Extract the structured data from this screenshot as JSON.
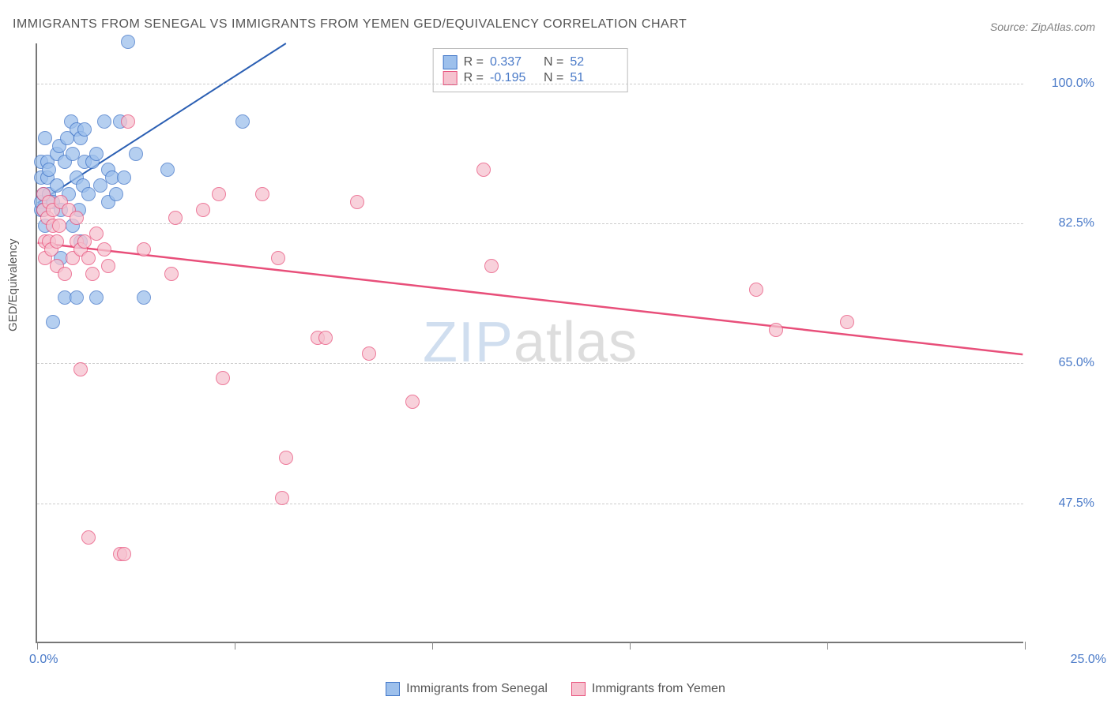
{
  "title": "IMMIGRANTS FROM SENEGAL VS IMMIGRANTS FROM YEMEN GED/EQUIVALENCY CORRELATION CHART",
  "source": "Source: ZipAtlas.com",
  "y_axis_label": "GED/Equivalency",
  "watermark": {
    "z": "ZIP",
    "a": "atlas"
  },
  "chart": {
    "type": "scatter",
    "background_color": "#ffffff",
    "grid_color": "#cccccc",
    "axis_color": "#777777",
    "tick_label_color": "#4a7ac8",
    "xlim": [
      0,
      25
    ],
    "ylim": [
      30,
      105
    ],
    "x_ticks": [
      0,
      5,
      10,
      15,
      20,
      25
    ],
    "x_tick_labels": {
      "0": "0.0%",
      "25": "25.0%"
    },
    "y_gridlines": [
      47.5,
      65.0,
      82.5,
      100.0
    ],
    "y_tick_labels": [
      "47.5%",
      "65.0%",
      "82.5%",
      "100.0%"
    ],
    "marker_radius": 9,
    "marker_opacity_fill": 0.25,
    "series": [
      {
        "name": "Immigrants from Senegal",
        "color_fill": "#9dc0ec",
        "color_stroke": "#3f74c7",
        "legend_r": "0.337",
        "legend_n": "52",
        "trend": {
          "x1": 0,
          "y1": 85,
          "x2": 6.3,
          "y2": 105,
          "dash_x2": 9.6,
          "color": "#2b5fb3",
          "width": 2
        },
        "points": [
          [
            0.1,
            84
          ],
          [
            0.1,
            85
          ],
          [
            0.1,
            88
          ],
          [
            0.1,
            90
          ],
          [
            0.15,
            86
          ],
          [
            0.15,
            84
          ],
          [
            0.2,
            93
          ],
          [
            0.2,
            82
          ],
          [
            0.25,
            88
          ],
          [
            0.25,
            90
          ],
          [
            0.3,
            86
          ],
          [
            0.3,
            89
          ],
          [
            0.4,
            85
          ],
          [
            0.4,
            70
          ],
          [
            0.5,
            91
          ],
          [
            0.5,
            87
          ],
          [
            0.55,
            92
          ],
          [
            0.6,
            78
          ],
          [
            0.6,
            84
          ],
          [
            0.7,
            73
          ],
          [
            0.7,
            90
          ],
          [
            0.75,
            93
          ],
          [
            0.8,
            86
          ],
          [
            0.85,
            95
          ],
          [
            0.9,
            91
          ],
          [
            0.9,
            82
          ],
          [
            1.0,
            88
          ],
          [
            1.0,
            73
          ],
          [
            1.0,
            94
          ],
          [
            1.05,
            84
          ],
          [
            1.1,
            80
          ],
          [
            1.1,
            93
          ],
          [
            1.15,
            87
          ],
          [
            1.2,
            90
          ],
          [
            1.2,
            94
          ],
          [
            1.3,
            86
          ],
          [
            1.4,
            90
          ],
          [
            1.5,
            73
          ],
          [
            1.5,
            91
          ],
          [
            1.6,
            87
          ],
          [
            1.7,
            95
          ],
          [
            1.8,
            89
          ],
          [
            1.8,
            85
          ],
          [
            1.9,
            88
          ],
          [
            2.0,
            86
          ],
          [
            2.1,
            95
          ],
          [
            2.2,
            88
          ],
          [
            2.3,
            105
          ],
          [
            2.5,
            91
          ],
          [
            2.7,
            73
          ],
          [
            3.3,
            89
          ],
          [
            5.2,
            95
          ]
        ]
      },
      {
        "name": "Immigrants from Yemen",
        "color_fill": "#f6c2cf",
        "color_stroke": "#e84f7a",
        "legend_r": "-0.195",
        "legend_n": "51",
        "trend": {
          "x1": 0,
          "y1": 80,
          "x2": 25,
          "y2": 66,
          "color": "#e84f7a",
          "width": 2.5
        },
        "points": [
          [
            0.15,
            84
          ],
          [
            0.15,
            86
          ],
          [
            0.2,
            80
          ],
          [
            0.2,
            78
          ],
          [
            0.25,
            83
          ],
          [
            0.3,
            80
          ],
          [
            0.3,
            85
          ],
          [
            0.35,
            79
          ],
          [
            0.4,
            82
          ],
          [
            0.4,
            84
          ],
          [
            0.5,
            77
          ],
          [
            0.5,
            80
          ],
          [
            0.55,
            82
          ],
          [
            0.6,
            85
          ],
          [
            0.7,
            76
          ],
          [
            0.8,
            84
          ],
          [
            0.9,
            78
          ],
          [
            1.0,
            80
          ],
          [
            1.0,
            83
          ],
          [
            1.1,
            64
          ],
          [
            1.1,
            79
          ],
          [
            1.2,
            80
          ],
          [
            1.3,
            78
          ],
          [
            1.3,
            43
          ],
          [
            1.4,
            76
          ],
          [
            1.5,
            81
          ],
          [
            1.7,
            79
          ],
          [
            1.8,
            77
          ],
          [
            2.1,
            41
          ],
          [
            2.2,
            41
          ],
          [
            2.3,
            95
          ],
          [
            2.7,
            79
          ],
          [
            3.4,
            76
          ],
          [
            3.5,
            83
          ],
          [
            4.2,
            84
          ],
          [
            4.6,
            86
          ],
          [
            4.7,
            63
          ],
          [
            5.7,
            86
          ],
          [
            6.1,
            78
          ],
          [
            6.3,
            53
          ],
          [
            7.1,
            68
          ],
          [
            7.3,
            68
          ],
          [
            8.1,
            85
          ],
          [
            8.4,
            66
          ],
          [
            9.5,
            60
          ],
          [
            11.3,
            89
          ],
          [
            11.5,
            77
          ],
          [
            18.2,
            74
          ],
          [
            18.7,
            69
          ],
          [
            20.5,
            70
          ],
          [
            6.2,
            48
          ]
        ]
      }
    ]
  },
  "legend_bottom": [
    {
      "label": "Immigrants from Senegal",
      "fill": "#9dc0ec",
      "stroke": "#3f74c7"
    },
    {
      "label": "Immigrants from Yemen",
      "fill": "#f6c2cf",
      "stroke": "#e84f7a"
    }
  ]
}
